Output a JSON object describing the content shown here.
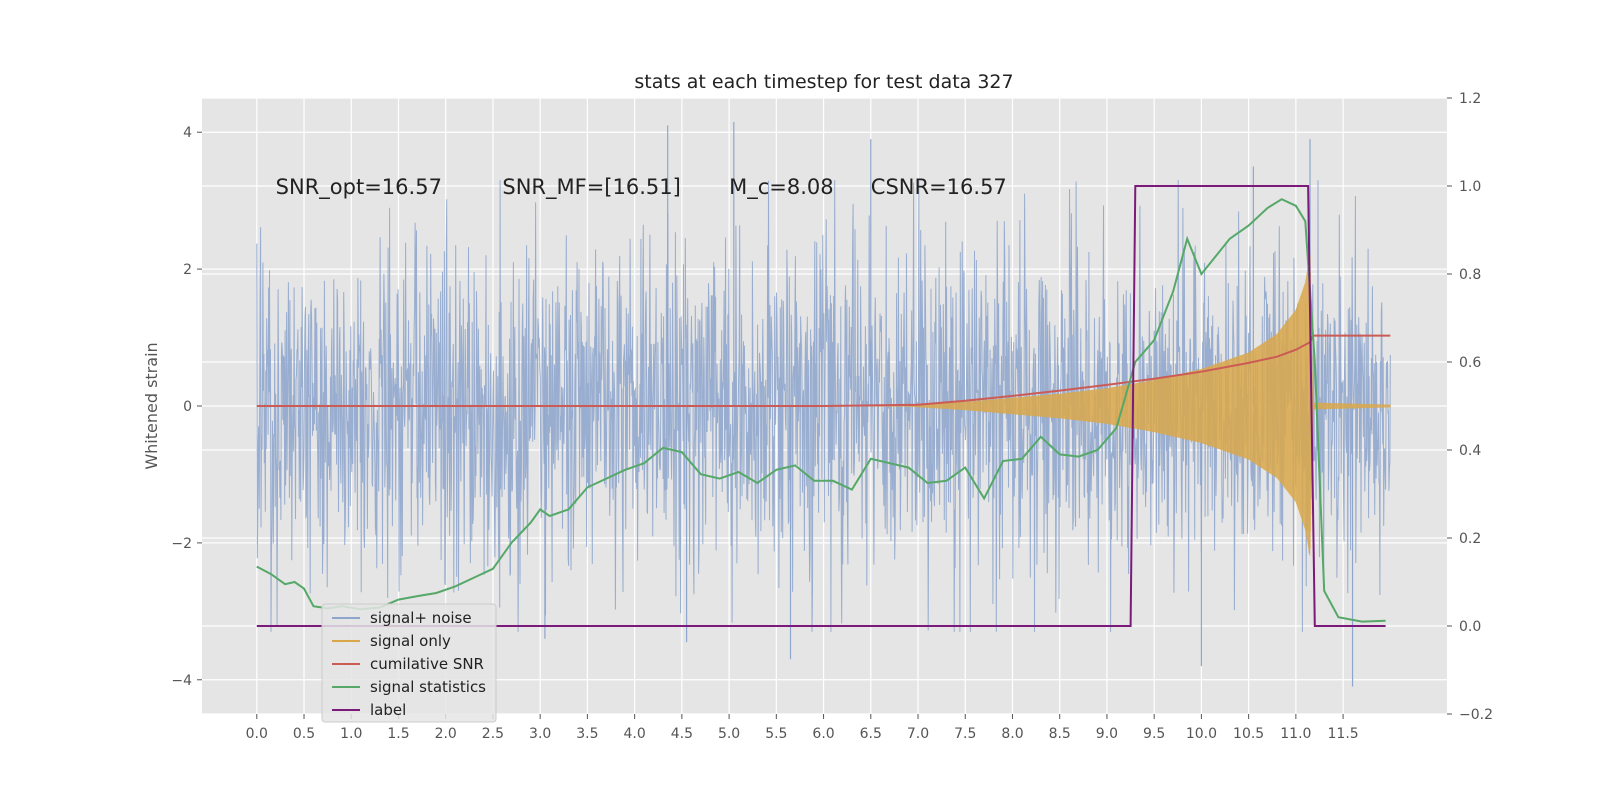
{
  "chart_data": {
    "type": "line",
    "title": "stats at each timestep for test data 327",
    "ylabel": "Whitened strain",
    "xlabel": "",
    "xlim": [
      -0.58,
      12.6
    ],
    "ylim": [
      -4.5,
      4.5
    ],
    "y2lim": [
      -0.2,
      1.2
    ],
    "x_ticks": [
      0.0,
      0.5,
      1.0,
      1.5,
      2.0,
      2.5,
      3.0,
      3.5,
      4.0,
      4.5,
      5.0,
      5.5,
      6.0,
      6.5,
      7.0,
      7.5,
      8.0,
      8.5,
      9.0,
      9.5,
      10.0,
      10.5,
      11.0,
      11.5
    ],
    "x_tick_labels": [
      "0.0",
      "0.5",
      "1.0",
      "1.5",
      "2.0",
      "2.5",
      "3.0",
      "3.5",
      "4.0",
      "4.5",
      "5.0",
      "5.5",
      "6.0",
      "6.5",
      "7.0",
      "7.5",
      "8.0",
      "8.5",
      "9.0",
      "9.5",
      "10.0",
      "10.5",
      "11.0",
      "11.5"
    ],
    "y_ticks": [
      -4,
      -2,
      0,
      2,
      4
    ],
    "y_tick_labels": [
      "−4",
      "−2",
      "0",
      "2",
      "4"
    ],
    "y2_ticks": [
      -0.2,
      0.0,
      0.2,
      0.4,
      0.6,
      0.8,
      1.0,
      1.2
    ],
    "y2_tick_labels": [
      "−0.2",
      "0.0",
      "0.2",
      "0.4",
      "0.6",
      "0.8",
      "1.0",
      "1.2"
    ],
    "grid": true,
    "legend_position": "lower-left",
    "annotations": [
      {
        "text": "SNR_opt=16.57",
        "x": 0.2,
        "y": 3.2
      },
      {
        "text": "SNR_MF=[16.51]",
        "x": 2.6,
        "y": 3.2
      },
      {
        "text": "M_c=8.08",
        "x": 5.0,
        "y": 3.2
      },
      {
        "text": "CSNR=16.57",
        "x": 6.5,
        "y": 3.2
      }
    ],
    "series": [
      {
        "name": "signal+ noise",
        "axis": "left",
        "color": "#8fa6cc",
        "noise_std": 1.2,
        "x_range": [
          0.0,
          12.0
        ],
        "samples": 2400,
        "spike_points": [
          [
            4.35,
            4.1
          ],
          [
            5.05,
            4.15
          ],
          [
            6.5,
            3.9
          ],
          [
            10.55,
            3.5
          ],
          [
            11.15,
            3.9
          ],
          [
            11.6,
            -4.1
          ],
          [
            5.65,
            -3.7
          ],
          [
            10.0,
            -3.8
          ],
          [
            3.05,
            -3.4
          ],
          [
            4.55,
            -3.45
          ]
        ]
      },
      {
        "name": "signal only",
        "axis": "left",
        "color": "#d9a74a",
        "envelope": [
          [
            6.9,
            0.01
          ],
          [
            7.5,
            0.06
          ],
          [
            8.0,
            0.12
          ],
          [
            8.5,
            0.18
          ],
          [
            9.0,
            0.26
          ],
          [
            9.5,
            0.38
          ],
          [
            10.0,
            0.54
          ],
          [
            10.5,
            0.78
          ],
          [
            10.8,
            1.05
          ],
          [
            11.0,
            1.4
          ],
          [
            11.1,
            1.8
          ],
          [
            11.15,
            2.2
          ],
          [
            11.18,
            0.05
          ],
          [
            12.0,
            0.02
          ]
        ]
      },
      {
        "name": "cumilative SNR",
        "axis": "right",
        "color": "#cc5a55",
        "points": [
          [
            0.0,
            0.5
          ],
          [
            6.0,
            0.5
          ],
          [
            7.0,
            0.503
          ],
          [
            7.5,
            0.512
          ],
          [
            8.0,
            0.523
          ],
          [
            8.5,
            0.535
          ],
          [
            9.0,
            0.548
          ],
          [
            9.5,
            0.562
          ],
          [
            10.0,
            0.578
          ],
          [
            10.5,
            0.598
          ],
          [
            10.8,
            0.612
          ],
          [
            11.0,
            0.628
          ],
          [
            11.15,
            0.645
          ],
          [
            11.18,
            0.66
          ],
          [
            12.0,
            0.66
          ]
        ]
      },
      {
        "name": "signal statistics",
        "axis": "right",
        "color": "#55a868",
        "points": [
          [
            0.0,
            0.135
          ],
          [
            0.15,
            0.118
          ],
          [
            0.3,
            0.095
          ],
          [
            0.4,
            0.1
          ],
          [
            0.5,
            0.085
          ],
          [
            0.6,
            0.045
          ],
          [
            0.75,
            0.04
          ],
          [
            0.9,
            0.045
          ],
          [
            1.1,
            0.038
          ],
          [
            1.3,
            0.042
          ],
          [
            1.5,
            0.06
          ],
          [
            1.7,
            0.068
          ],
          [
            1.9,
            0.075
          ],
          [
            2.1,
            0.09
          ],
          [
            2.3,
            0.11
          ],
          [
            2.5,
            0.13
          ],
          [
            2.7,
            0.19
          ],
          [
            2.9,
            0.235
          ],
          [
            3.0,
            0.265
          ],
          [
            3.1,
            0.25
          ],
          [
            3.3,
            0.265
          ],
          [
            3.5,
            0.315
          ],
          [
            3.7,
            0.335
          ],
          [
            3.9,
            0.355
          ],
          [
            4.1,
            0.37
          ],
          [
            4.3,
            0.405
          ],
          [
            4.5,
            0.395
          ],
          [
            4.7,
            0.345
          ],
          [
            4.9,
            0.335
          ],
          [
            5.1,
            0.35
          ],
          [
            5.3,
            0.325
          ],
          [
            5.5,
            0.355
          ],
          [
            5.7,
            0.365
          ],
          [
            5.9,
            0.33
          ],
          [
            6.1,
            0.33
          ],
          [
            6.3,
            0.31
          ],
          [
            6.5,
            0.38
          ],
          [
            6.7,
            0.37
          ],
          [
            6.9,
            0.36
          ],
          [
            7.1,
            0.325
          ],
          [
            7.3,
            0.33
          ],
          [
            7.5,
            0.36
          ],
          [
            7.7,
            0.29
          ],
          [
            7.9,
            0.375
          ],
          [
            8.1,
            0.38
          ],
          [
            8.3,
            0.43
          ],
          [
            8.5,
            0.39
          ],
          [
            8.7,
            0.385
          ],
          [
            8.9,
            0.4
          ],
          [
            9.1,
            0.45
          ],
          [
            9.3,
            0.6
          ],
          [
            9.5,
            0.65
          ],
          [
            9.7,
            0.76
          ],
          [
            9.85,
            0.88
          ],
          [
            10.0,
            0.8
          ],
          [
            10.15,
            0.84
          ],
          [
            10.3,
            0.88
          ],
          [
            10.5,
            0.91
          ],
          [
            10.7,
            0.95
          ],
          [
            10.85,
            0.97
          ],
          [
            11.0,
            0.955
          ],
          [
            11.1,
            0.92
          ],
          [
            11.2,
            0.6
          ],
          [
            11.3,
            0.08
          ],
          [
            11.45,
            0.02
          ],
          [
            11.7,
            0.01
          ],
          [
            11.95,
            0.012
          ]
        ]
      },
      {
        "name": "label",
        "axis": "right",
        "color": "#7b1a7a",
        "points": [
          [
            0.0,
            0.0
          ],
          [
            9.25,
            0.0
          ],
          [
            9.3,
            1.0
          ],
          [
            11.13,
            1.0
          ],
          [
            11.2,
            0.0
          ],
          [
            11.95,
            0.0
          ]
        ]
      }
    ]
  }
}
